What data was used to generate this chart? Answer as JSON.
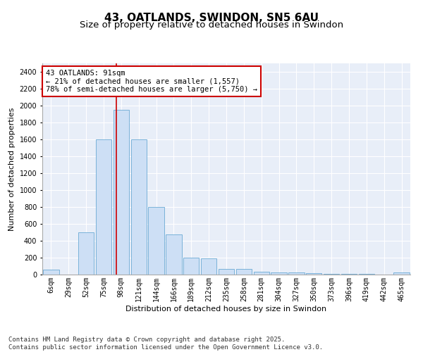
{
  "title1": "43, OATLANDS, SWINDON, SN5 6AU",
  "title2": "Size of property relative to detached houses in Swindon",
  "xlabel": "Distribution of detached houses by size in Swindon",
  "ylabel": "Number of detached properties",
  "categories": [
    "6sqm",
    "29sqm",
    "52sqm",
    "75sqm",
    "98sqm",
    "121sqm",
    "144sqm",
    "166sqm",
    "189sqm",
    "212sqm",
    "235sqm",
    "258sqm",
    "281sqm",
    "304sqm",
    "327sqm",
    "350sqm",
    "373sqm",
    "396sqm",
    "419sqm",
    "442sqm",
    "465sqm"
  ],
  "values": [
    60,
    0,
    500,
    1600,
    1950,
    1600,
    800,
    475,
    200,
    195,
    70,
    70,
    30,
    25,
    25,
    18,
    10,
    8,
    5,
    0,
    25
  ],
  "bar_color": "#cddff5",
  "bar_edge_color": "#6aaad4",
  "annotation_text": "43 OATLANDS: 91sqm\n← 21% of detached houses are smaller (1,557)\n78% of semi-detached houses are larger (5,750) →",
  "annotation_box_color": "#ffffff",
  "annotation_box_edge": "#cc0000",
  "vline_x": 3.72,
  "vline_color": "#cc0000",
  "ylim": [
    0,
    2500
  ],
  "yticks": [
    0,
    200,
    400,
    600,
    800,
    1000,
    1200,
    1400,
    1600,
    1800,
    2000,
    2200,
    2400
  ],
  "footer1": "Contains HM Land Registry data © Crown copyright and database right 2025.",
  "footer2": "Contains public sector information licensed under the Open Government Licence v3.0.",
  "bg_color": "#e8eef8",
  "title_fontsize": 11,
  "subtitle_fontsize": 9.5,
  "axis_label_fontsize": 8,
  "tick_fontsize": 7,
  "footer_fontsize": 6.5,
  "annotation_fontsize": 7.5
}
